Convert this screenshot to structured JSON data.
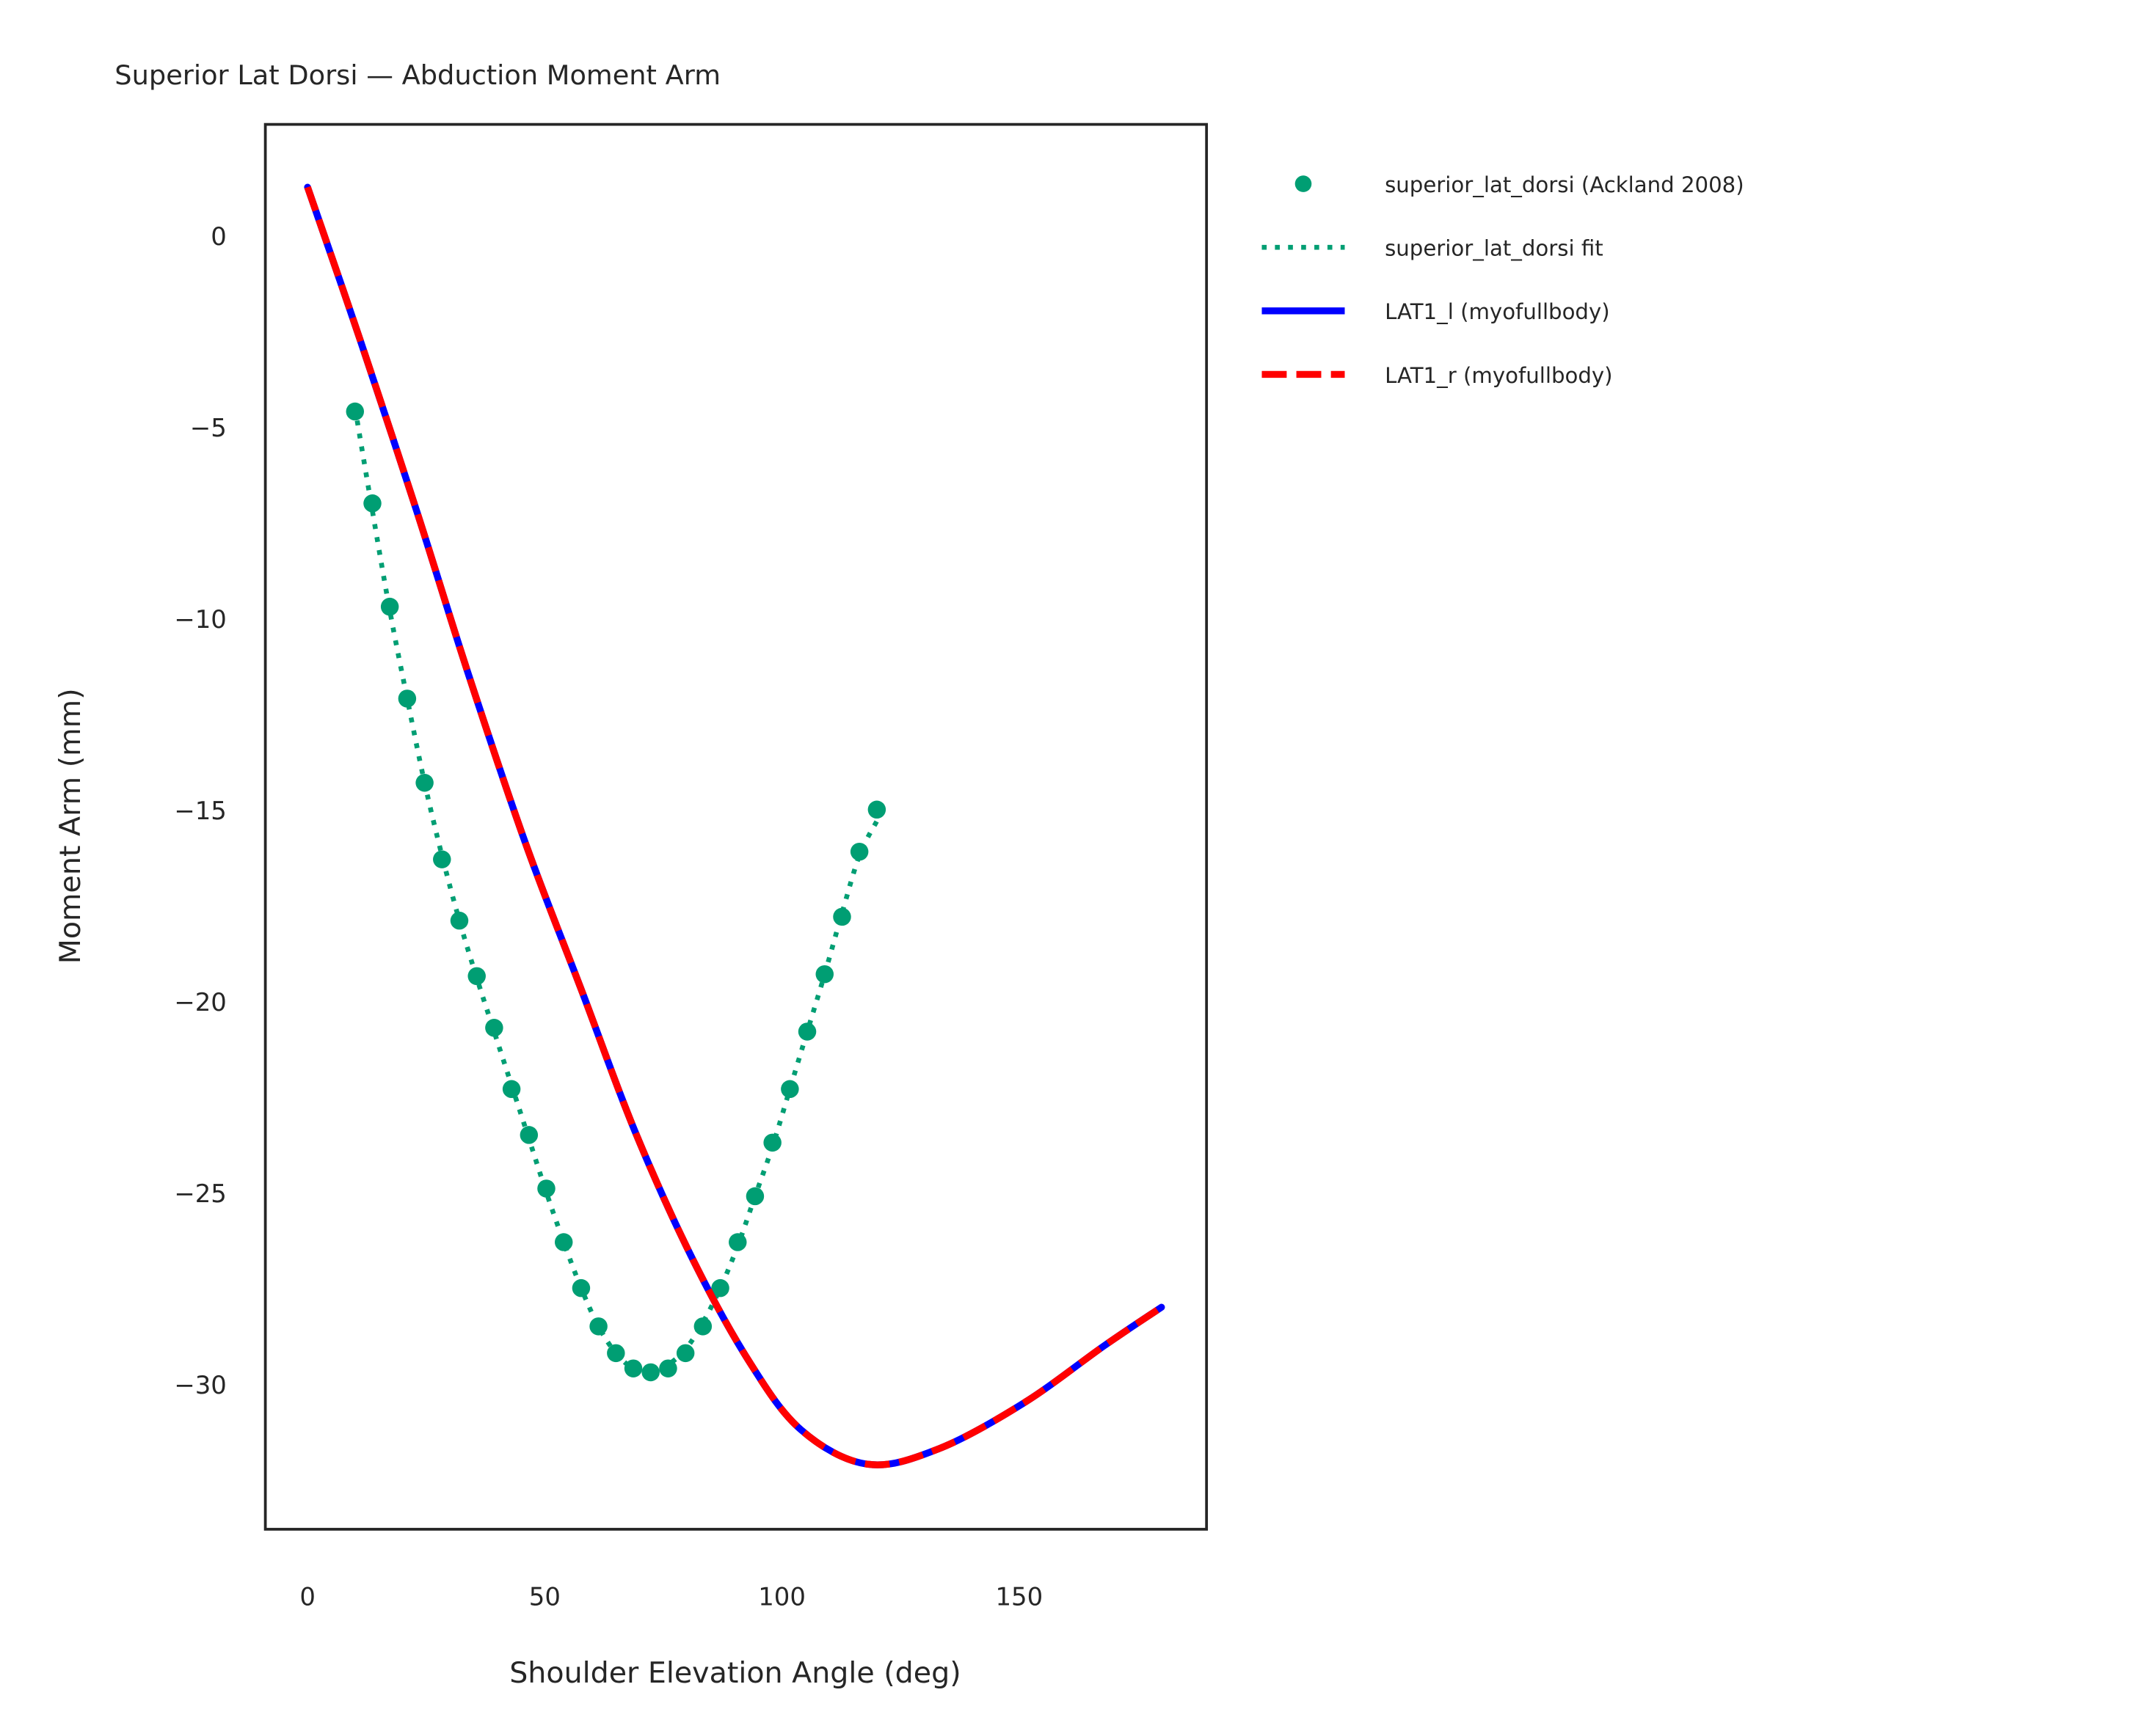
{
  "chart_data": {
    "type": "line",
    "title": "Superior Lat Dorsi — Abduction Moment Arm",
    "xlabel": "Shoulder Elevation Angle (deg)",
    "ylabel": "Moment Arm (mm)",
    "xlim": [
      -8.9,
      189.5
    ],
    "ylim": [
      -33.8,
      2.9
    ],
    "xticks": [
      "0",
      "50",
      "100",
      "150"
    ],
    "xtick_values": [
      0,
      50,
      100,
      150
    ],
    "yticks": [
      "0",
      "−5",
      "−10",
      "−15",
      "−20",
      "−25",
      "−30"
    ],
    "ytick_values": [
      0,
      -5,
      -10,
      -15,
      -20,
      -25,
      -30
    ],
    "grid": false,
    "legend_placement": "outside-top-right",
    "series": [
      {
        "name": "superior_lat_dorsi (Ackland 2008)",
        "kind": "scatter",
        "color": "#009e73",
        "x": [
          10,
          13.67,
          17.33,
          21,
          24.67,
          28.33,
          32,
          35.67,
          39.33,
          43,
          46.67,
          50.33,
          54,
          57.67,
          61.33,
          65,
          68.67,
          72.33,
          76,
          79.67,
          83.33,
          87,
          90.67,
          94.33,
          98,
          101.67,
          105.33,
          109,
          112.67,
          116.33,
          120
        ],
        "y": [
          -4.6,
          -7.0,
          -9.7,
          -12.1,
          -14.3,
          -16.3,
          -17.9,
          -19.35,
          -20.7,
          -22.3,
          -23.5,
          -24.9,
          -26.3,
          -27.5,
          -28.5,
          -29.2,
          -29.6,
          -29.7,
          -29.6,
          -29.2,
          -28.5,
          -27.5,
          -26.3,
          -25.1,
          -23.7,
          -22.3,
          -20.8,
          -19.3,
          -17.8,
          -16.1,
          -15.0
        ]
      },
      {
        "name": "superior_lat_dorsi fit",
        "kind": "dotted-line",
        "color": "#009e73",
        "x": [
          10,
          13.67,
          17.33,
          21,
          24.67,
          28.33,
          32,
          35.67,
          39.33,
          43,
          46.67,
          50.33,
          54,
          57.67,
          61.33,
          65,
          68.67,
          72.33,
          76,
          79.67,
          83.33,
          87,
          90.67,
          94.33,
          98,
          101.67,
          105.33,
          109,
          112.67,
          116.33,
          120
        ],
        "y": [
          -4.5,
          -7.2,
          -9.8,
          -12.1,
          -14.3,
          -16.2,
          -17.9,
          -19.4,
          -20.8,
          -22.2,
          -23.6,
          -25.0,
          -26.3,
          -27.5,
          -28.5,
          -29.2,
          -29.6,
          -29.7,
          -29.5,
          -29.1,
          -28.4,
          -27.5,
          -26.4,
          -25.1,
          -23.8,
          -22.3,
          -20.8,
          -19.3,
          -17.7,
          -16.2,
          -15.3
        ]
      },
      {
        "name": "LAT1_l (myofullbody)",
        "kind": "solid-line",
        "color": "#0000ff",
        "x": [
          0,
          11,
          23,
          34,
          46,
          58,
          69,
          81,
          93,
          104,
          118,
          133,
          151,
          168,
          180
        ],
        "y": [
          1.26,
          -2.7,
          -7.2,
          -11.5,
          -15.9,
          -19.8,
          -23.4,
          -26.7,
          -29.4,
          -31.2,
          -32.1,
          -31.7,
          -30.5,
          -29.0,
          -28.0
        ]
      },
      {
        "name": "LAT1_r (myofullbody)",
        "kind": "dashed-line",
        "color": "#ff0000",
        "x": [
          0,
          11,
          23,
          34,
          46,
          58,
          69,
          81,
          93,
          104,
          118,
          133,
          151,
          168,
          180
        ],
        "y": [
          1.26,
          -2.7,
          -7.2,
          -11.5,
          -15.9,
          -19.8,
          -23.4,
          -26.7,
          -29.4,
          -31.2,
          -32.1,
          -31.7,
          -30.5,
          -29.0,
          -28.0
        ]
      }
    ]
  }
}
